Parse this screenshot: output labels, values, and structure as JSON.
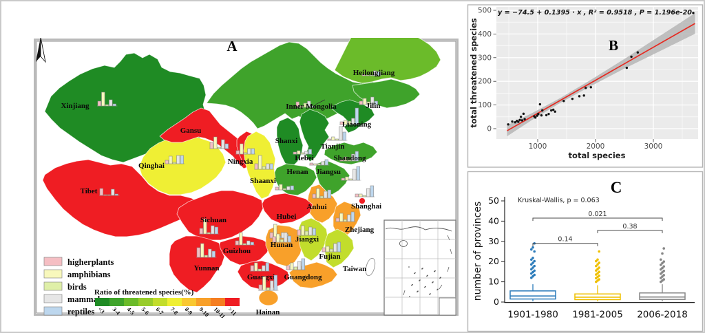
{
  "figure": {
    "background": "#ffffff",
    "border_color": "#c9c9c9"
  },
  "map": {
    "panel_label": "A",
    "north_label": "N",
    "ramp": {
      "title": "Ratio of threatened species(%)",
      "labels": [
        "<3",
        "3-4",
        "4-5",
        "5-6",
        "6-7",
        "7-8",
        "8-9",
        "9-10",
        "10-11",
        ">11"
      ],
      "colors": [
        "#1F8B24",
        "#3FA32B",
        "#6BBB2A",
        "#98CC2B",
        "#C2DD2C",
        "#EFEF34",
        "#F9C832",
        "#F8A02A",
        "#F57E21",
        "#EF1D23"
      ]
    },
    "legend": {
      "items": [
        {
          "label": "higherplants",
          "color": "#F5BEC3"
        },
        {
          "label": "amphibians",
          "color": "#F8F8BC"
        },
        {
          "label": "birds",
          "color": "#DFEFA8"
        },
        {
          "label": "mammals",
          "color": "#E6E6E6"
        },
        {
          "label": "reptiles",
          "color": "#BDD7EE"
        }
      ]
    },
    "bar_series": [
      "higherplants",
      "amphibians",
      "birds",
      "mammals",
      "reptiles"
    ],
    "provinces": [
      {
        "name": "Xinjiang",
        "ratio_class": "<3",
        "label": [
          107,
          155
        ],
        "chart": [
          140,
          128
        ],
        "bars": [
          7,
          20,
          2,
          9,
          3
        ]
      },
      {
        "name": "Tibet",
        "ratio_class": ">11",
        "label": [
          127,
          279
        ],
        "chart": [
          143,
          258
        ],
        "bars": [
          10,
          1,
          1,
          9,
          2
        ]
      },
      {
        "name": "Qinghai",
        "ratio_class": "7-8",
        "label": [
          218,
          242
        ],
        "chart": [
          238,
          212
        ],
        "bars": [
          5,
          11,
          2,
          12,
          12
        ]
      },
      {
        "name": "Gansu",
        "ratio_class": ">11",
        "label": [
          275,
          191
        ],
        "chart": [
          303,
          190
        ],
        "bars": [
          9,
          17,
          2,
          13,
          7
        ]
      },
      {
        "name": "Ningxia",
        "ratio_class": ">11",
        "label": [
          347,
          236
        ],
        "chart": [
          341,
          198
        ],
        "bars": [
          5,
          15,
          2,
          8,
          8
        ]
      },
      {
        "name": "Inner Mongolia",
        "ratio_class": "3-4",
        "label": [
          450,
          156
        ],
        "chart": [
          428,
          130
        ],
        "bars": [
          8,
          2,
          6,
          9,
          2
        ]
      },
      {
        "name": "Heilongjiang",
        "ratio_class": "4-5",
        "label": [
          541,
          107
        ],
        "chart": [
          524,
          84
        ],
        "bars": [
          2,
          1,
          1,
          7,
          6
        ]
      },
      {
        "name": "Jilin",
        "ratio_class": "3-4",
        "label": [
          540,
          155
        ],
        "chart": [
          520,
          126
        ],
        "bars": [
          5,
          9,
          4,
          11,
          5
        ]
      },
      {
        "name": "Liaoning",
        "ratio_class": "<3",
        "label": [
          516,
          182
        ],
        "chart": [
          492,
          155
        ],
        "bars": [
          4,
          6,
          5,
          9,
          24
        ]
      },
      {
        "name": "Shanxi",
        "ratio_class": "<3",
        "label": [
          414,
          206
        ],
        "chart": [
          424,
          198
        ],
        "bars": [
          3,
          5,
          2,
          4,
          7
        ]
      },
      {
        "name": "Hebei",
        "ratio_class": "<3",
        "label": [
          440,
          231
        ],
        "chart": [
          448,
          214
        ],
        "bars": [
          3,
          2,
          2,
          5,
          8
        ]
      },
      {
        "name": "Tianjin",
        "ratio_class": null,
        "label": [
          481,
          214
        ],
        "chart": [
          474,
          178
        ],
        "bars": [
          2,
          5,
          2,
          20,
          12
        ]
      },
      {
        "name": "Shandong",
        "ratio_class": "3-4",
        "label": [
          506,
          231
        ],
        "chart": [
          492,
          208
        ],
        "bars": [
          2,
          6,
          2,
          10,
          14
        ]
      },
      {
        "name": "Henan",
        "ratio_class": "3-4",
        "label": [
          430,
          251
        ],
        "chart": [
          398,
          250
        ],
        "bars": [
          4,
          8,
          2,
          5,
          6
        ]
      },
      {
        "name": "Jiangsu",
        "ratio_class": "3-4",
        "label": [
          475,
          251
        ],
        "chart": [
          494,
          236
        ],
        "bars": [
          3,
          5,
          2,
          16,
          20
        ]
      },
      {
        "name": "Shaanxi",
        "ratio_class": "7-8",
        "label": [
          380,
          264
        ],
        "chart": [
          368,
          220
        ],
        "bars": [
          8,
          20,
          4,
          8,
          8
        ]
      },
      {
        "name": "Anhui",
        "ratio_class": "9-10",
        "label": [
          458,
          302
        ],
        "chart": [
          452,
          262
        ],
        "bars": [
          6,
          14,
          3,
          10,
          12
        ]
      },
      {
        "name": "Shanghai",
        "ratio_class": ">11",
        "label": [
          530,
          301
        ],
        "chart": [
          514,
          260
        ],
        "bars": [
          4,
          4,
          2,
          12,
          16
        ]
      },
      {
        "name": "Zhejiang",
        "ratio_class": "9-10",
        "label": [
          520,
          335
        ],
        "chart": [
          486,
          296
        ],
        "bars": [
          5,
          12,
          3,
          10,
          14
        ]
      },
      {
        "name": "Hubei",
        "ratio_class": ">11",
        "label": [
          414,
          316
        ],
        "chart": [
          390,
          320
        ],
        "bars": [
          8,
          20,
          3,
          8,
          6
        ]
      },
      {
        "name": "Sichuan",
        "ratio_class": ">11",
        "label": [
          308,
          321
        ],
        "chart": [
          288,
          314
        ],
        "bars": [
          8,
          22,
          2,
          12,
          10
        ]
      },
      {
        "name": "Guizhou",
        "ratio_class": ">11",
        "label": [
          342,
          366
        ],
        "chart": [
          340,
          330
        ],
        "bars": [
          6,
          18,
          2,
          6,
          4
        ]
      },
      {
        "name": "Yunnan",
        "ratio_class": ">11",
        "label": [
          298,
          391
        ],
        "chart": [
          284,
          348
        ],
        "bars": [
          14,
          20,
          3,
          12,
          9
        ]
      },
      {
        "name": "Hunan",
        "ratio_class": "9-10",
        "label": [
          407,
          357
        ],
        "chart": [
          394,
          326
        ],
        "bars": [
          8,
          12,
          4,
          14,
          9
        ]
      },
      {
        "name": "Jiangxi",
        "ratio_class": "6-7",
        "label": [
          444,
          349
        ],
        "chart": [
          430,
          316
        ],
        "bars": [
          8,
          14,
          6,
          12,
          10
        ]
      },
      {
        "name": "Fujian",
        "ratio_class": "6-7",
        "label": [
          477,
          374
        ],
        "chart": [
          466,
          340
        ],
        "bars": [
          6,
          8,
          4,
          12,
          14
        ]
      },
      {
        "name": "Guangxi",
        "ratio_class": ">11",
        "label": [
          377,
          404
        ],
        "chart": [
          362,
          368
        ],
        "bars": [
          8,
          12,
          3,
          8,
          12
        ]
      },
      {
        "name": "Guangdong",
        "ratio_class": "9-10",
        "label": [
          438,
          404
        ],
        "chart": [
          414,
          366
        ],
        "bars": [
          6,
          10,
          4,
          12,
          16
        ]
      },
      {
        "name": "Hainan",
        "ratio_class": "9-10",
        "label": [
          387,
          455
        ],
        "chart": [
          374,
          396
        ],
        "bars": [
          8,
          20,
          4,
          14,
          22
        ]
      },
      {
        "name": "Taiwan",
        "ratio_class": null,
        "label": [
          513,
          392
        ],
        "chart": null,
        "bars": null
      }
    ]
  },
  "chart_data": [
    {
      "id": "B",
      "type": "scatter",
      "title_label": "B",
      "equation": "y = −74.5 + 0.1395 · x ,  R² = 0.9518 ,  P = 1.196e-20",
      "intercept": -74.5,
      "slope": 0.1395,
      "r_squared": 0.9518,
      "p_value": "1.196e-20",
      "xlabel": "total species",
      "ylabel": "total threatened species",
      "xlim": [
        400,
        3750
      ],
      "ylim": [
        -20,
        520
      ],
      "xticks": [
        1000,
        2000,
        3000
      ],
      "yticks": [
        0,
        100,
        200,
        300,
        400,
        500
      ],
      "xticks_minor": [
        500,
        1500,
        2500,
        3500
      ],
      "yticks_minor": [
        50,
        150,
        250,
        350,
        450
      ],
      "line_color": "#E62A21",
      "band_color": "#b3b3b3",
      "panel_bg": "#EBEBEB",
      "band": [
        [
          470,
          8
        ],
        [
          900,
          5
        ],
        [
          1400,
          3.5
        ],
        [
          1900,
          4.5
        ],
        [
          2500,
          7
        ],
        [
          3100,
          11
        ],
        [
          3720,
          15
        ]
      ],
      "points": [
        [
          490,
          18
        ],
        [
          560,
          30
        ],
        [
          610,
          27
        ],
        [
          640,
          33
        ],
        [
          665,
          29
        ],
        [
          690,
          37
        ],
        [
          710,
          50
        ],
        [
          730,
          35
        ],
        [
          755,
          63
        ],
        [
          775,
          40
        ],
        [
          940,
          52
        ],
        [
          960,
          47
        ],
        [
          990,
          55
        ],
        [
          1010,
          62
        ],
        [
          1040,
          103
        ],
        [
          1065,
          56
        ],
        [
          1080,
          77
        ],
        [
          1150,
          57
        ],
        [
          1190,
          62
        ],
        [
          1235,
          77
        ],
        [
          1270,
          80
        ],
        [
          1300,
          72
        ],
        [
          1450,
          117
        ],
        [
          1600,
          126
        ],
        [
          1720,
          137
        ],
        [
          1800,
          140
        ],
        [
          1830,
          172
        ],
        [
          1920,
          175
        ],
        [
          2540,
          257
        ],
        [
          2620,
          304
        ],
        [
          2730,
          322
        ],
        [
          3690,
          489
        ]
      ]
    },
    {
      "id": "C",
      "type": "box",
      "title_label": "C",
      "stat_label": "Kruskal-Wallis, p = 0.063",
      "ylabel": "number of provinces",
      "yticks": [
        0,
        10,
        20,
        30,
        40,
        50
      ],
      "groups": [
        {
          "label": "1901-1980",
          "color": "#2B7BBA",
          "q1": 1.5,
          "median": 3,
          "q3": 5.5,
          "whisker_low": 0.3,
          "whisker_high": 8.8,
          "outliers": [
            12,
            12.7,
            13.4,
            14.1,
            14.8,
            15.5,
            16.2,
            17,
            17.8,
            18.6,
            19.4,
            20.2,
            21,
            21.8,
            25,
            26,
            27,
            29
          ]
        },
        {
          "label": "1981-2005",
          "color": "#EFC000",
          "q1": 1.2,
          "median": 2.4,
          "q3": 4.0,
          "whisker_low": 0.3,
          "whisker_high": 8.3,
          "outliers": [
            10,
            10.6,
            11.2,
            11.8,
            12.4,
            13,
            13.6,
            14.2,
            14.9,
            15.6,
            16.3,
            17,
            17.8,
            18.6,
            19.4,
            20.2,
            21,
            25
          ]
        },
        {
          "label": "2006-2018",
          "color": "#868686",
          "q1": 1.3,
          "median": 2.5,
          "q3": 4.5,
          "whisker_low": 0.3,
          "whisker_high": 8.8,
          "outliers": [
            10,
            10.6,
            11.2,
            11.9,
            12.6,
            13.3,
            14,
            14.7,
            15.4,
            16.1,
            16.8,
            17.6,
            18.4,
            19.2,
            20,
            21,
            24,
            26.5
          ]
        }
      ],
      "comparisons": [
        {
          "a": 0,
          "b": 1,
          "label": "0.14",
          "y": 29
        },
        {
          "a": 0,
          "b": 2,
          "label": "0.021",
          "y": 41.5
        },
        {
          "a": 1,
          "b": 2,
          "label": "0.38",
          "y": 35.4
        }
      ]
    }
  ]
}
